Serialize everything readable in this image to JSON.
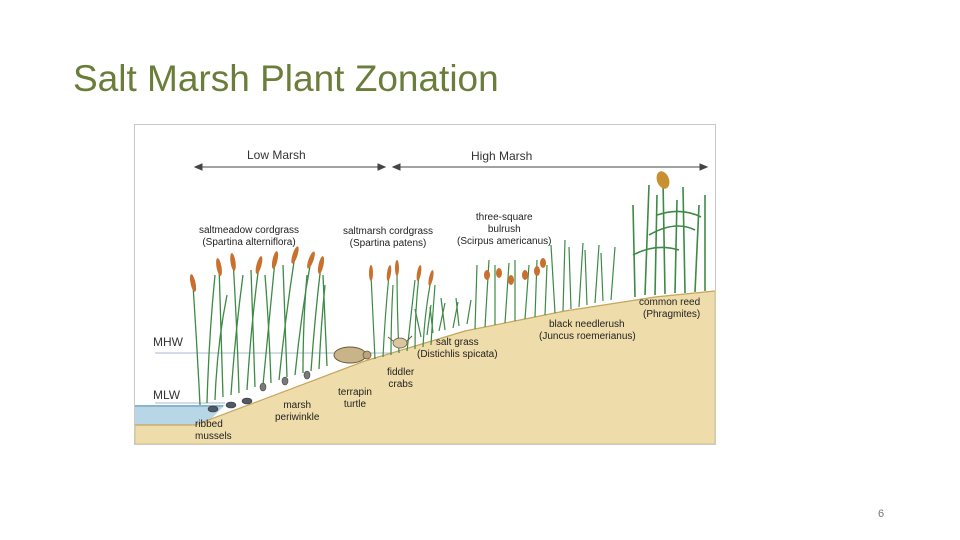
{
  "slide": {
    "title": "Salt Marsh Plant Zonation",
    "page_number": "6"
  },
  "diagram": {
    "zones": {
      "low_marsh": "Low Marsh",
      "high_marsh": "High Marsh"
    },
    "tide_levels": {
      "mhw": "MHW",
      "mlw": "MLW"
    },
    "plants": {
      "saltmeadow_common": "saltmeadow cordgrass",
      "saltmeadow_sci": "(Spartina alterniflora)",
      "saltmarsh_common": "saltmarsh cordgrass",
      "saltmarsh_sci": "(Spartina patens)",
      "bulrush_common_1": "three-square",
      "bulrush_common_2": "bulrush",
      "bulrush_sci": "(Scirpus americanus)",
      "common_reed_common": "common reed",
      "common_reed_sci": "(Phragmites)",
      "needlerush_common": "black needlerush",
      "needlerush_sci": "(Juncus roemerianus)",
      "salt_grass_common": "salt grass",
      "salt_grass_sci": "(Distichlis spicata)"
    },
    "animals": {
      "fiddler_1": "fiddler",
      "fiddler_2": "crabs",
      "terrapin_1": "terrapin",
      "terrapin_2": "turtle",
      "periwinkle_1": "marsh",
      "periwinkle_2": "periwinkle",
      "mussels_1": "ribbed",
      "mussels_2": "mussels"
    },
    "colors": {
      "sand": "#eedcaa",
      "sand_edge": "#d9bf7a",
      "water": "#b7d6e6",
      "grass": "#3c8a45",
      "seed_head": "#c8702e",
      "tide_line": "#8aa4c2"
    }
  }
}
